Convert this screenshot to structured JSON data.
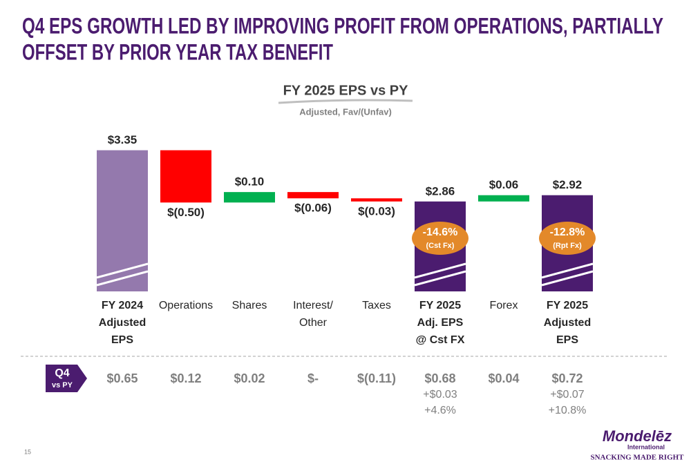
{
  "title": [
    "Q4 EPS GROWTH LED BY IMPROVING PROFIT FROM OPERATIONS, PARTIALLY",
    "OFFSET BY PRIOR YEAR TAX BENEFIT"
  ],
  "chart_data": {
    "type": "waterfall",
    "title": "FY 2025 EPS vs PY",
    "subtitle": "Adjusted, Fav/(Unfav)",
    "categories": [
      [
        "FY 2024",
        "Adjusted",
        "EPS"
      ],
      [
        "Operations"
      ],
      [
        "Shares"
      ],
      [
        "Interest/",
        "Other"
      ],
      [
        "Taxes"
      ],
      [
        "FY 2025",
        "Adj. EPS",
        "@ Cst FX"
      ],
      [
        "Forex"
      ],
      [
        "FY 2025",
        "Adjusted",
        "EPS"
      ]
    ],
    "values": [
      3.35,
      -0.5,
      0.1,
      -0.06,
      -0.03,
      2.86,
      0.06,
      2.92
    ],
    "value_labels": [
      "$3.35",
      "$(0.50)",
      "$0.10",
      "$(0.06)",
      "$(0.03)",
      "$2.86",
      "$0.06",
      "$2.92"
    ],
    "totals": [
      0,
      5,
      7
    ],
    "colors": [
      "#9479ad",
      "#ff0000",
      "#00b050",
      "#ff0000",
      "#ff0000",
      "#4b1c6f",
      "#00b050",
      "#4b1c6f"
    ],
    "badges": [
      null,
      null,
      null,
      null,
      null,
      {
        "text": "-14.6%",
        "sub": "(Cst Fx)"
      },
      null,
      {
        "text": "-12.8%",
        "sub": "(Rpt Fx)"
      }
    ],
    "ylim": [
      2,
      3.4
    ],
    "axis_break": true
  },
  "q4_row": {
    "label": "Q4",
    "sublabel": "vs PY",
    "values": [
      "$0.65",
      "$0.12",
      "$0.02",
      "$-",
      "$(0.11)",
      "$0.68",
      "$0.04",
      "$0.72"
    ],
    "changes": [
      null,
      null,
      null,
      null,
      null,
      "+$0.03",
      null,
      "+$0.07"
    ],
    "change_pcts": [
      null,
      null,
      null,
      null,
      null,
      "+4.6%",
      null,
      "+10.8%"
    ]
  },
  "page_number": "15",
  "logo": {
    "name": "Mondelēz",
    "sub": "International",
    "tagline": "SNACKING MADE RIGHT"
  }
}
